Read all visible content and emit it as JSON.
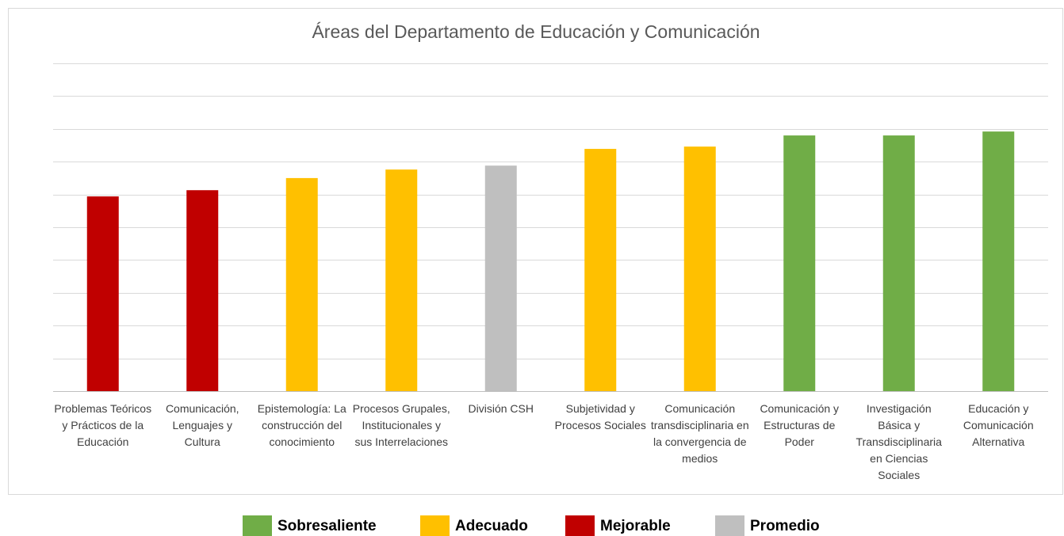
{
  "chart_data": {
    "type": "bar",
    "title": "Áreas del Departamento de Educación y Comunicación",
    "categories": [
      "Problemas Teóricos y Prácticos de la Educación",
      "Comunicación, Lenguajes y Cultura",
      "Epistemología: La construcción del conocimiento",
      "Procesos Grupales, Institucionales y sus Interrelaciones",
      "División CSH",
      "Subjetividad y Procesos Sociales",
      "Comunicación transdisciplinaria en la convergencia de medios",
      "Comunicación y Estructuras de Poder",
      "Investigación Básica y Transdisciplinaria en Ciencias Sociales",
      "Educación y Comunicación Alternativa"
    ],
    "values": [
      5.94,
      6.13,
      6.5,
      6.76,
      6.88,
      7.39,
      7.46,
      7.8,
      7.8,
      7.92
    ],
    "colors": [
      "#c00000",
      "#c00000",
      "#ffc000",
      "#ffc000",
      "#bfbfbf",
      "#ffc000",
      "#ffc000",
      "#70ad47",
      "#70ad47",
      "#70ad47"
    ],
    "ylim": [
      0,
      10
    ],
    "yticks": [
      0,
      1,
      2,
      3,
      4,
      5,
      6,
      7,
      8,
      9,
      10
    ],
    "grid": true,
    "legend": [
      {
        "name": "Sobresaliente",
        "color": "#70ad47"
      },
      {
        "name": "Adecuado",
        "color": "#ffc000"
      },
      {
        "name": "Mejorable",
        "color": "#c00000"
      },
      {
        "name": "Promedio",
        "color": "#bfbfbf"
      }
    ]
  }
}
